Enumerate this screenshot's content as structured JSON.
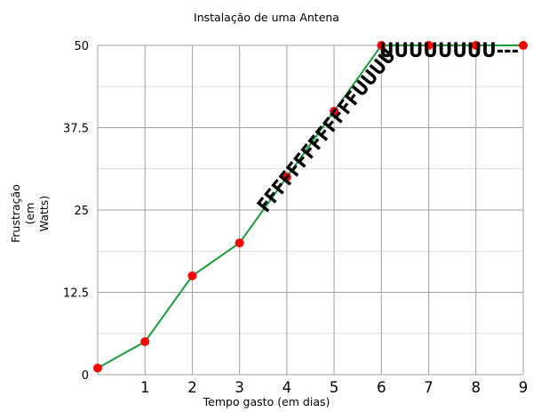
{
  "chart_data": {
    "type": "line",
    "title": "Instalação de uma Antena",
    "xlabel": "Tempo gasto (em dias)",
    "ylabel": [
      "Frustração",
      "(em",
      "Watts)"
    ],
    "xlim": [
      0,
      9
    ],
    "ylim": [
      0,
      50
    ],
    "x_ticks": [
      "1",
      "2",
      "3",
      "4",
      "5",
      "6",
      "7",
      "8",
      "9"
    ],
    "y_ticks": [
      "0",
      "12.5",
      "25",
      "37.5",
      "50"
    ],
    "series": [
      {
        "x": [
          0,
          1,
          2,
          3,
          4,
          5,
          6,
          7,
          8,
          9
        ],
        "y": [
          1,
          5,
          15,
          20,
          30,
          40,
          50,
          50,
          50,
          50
        ]
      }
    ],
    "annotations": [
      {
        "text": "FFFFFFFFFFFFFUUUU"
      },
      {
        "text": "UUUUUUUU---"
      }
    ],
    "grid": true,
    "colors": {
      "line": "#1a9b3c",
      "marker": "#ff0000",
      "grid": "#a0a0a0",
      "minor_grid": "#dddddd"
    }
  }
}
